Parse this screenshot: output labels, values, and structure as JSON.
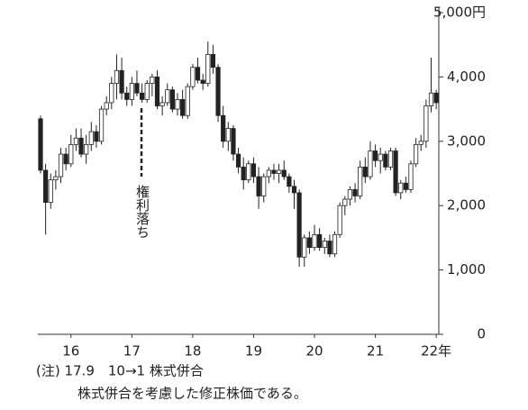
{
  "chart_data": {
    "type": "candlestick",
    "categories": [
      null,
      null,
      null,
      null,
      null,
      null,
      null,
      null,
      null,
      null,
      null,
      null,
      null,
      null,
      null,
      null,
      null,
      null,
      null,
      null,
      null,
      null,
      null,
      null,
      null,
      null,
      null,
      null,
      null,
      null,
      null,
      null,
      null,
      null,
      null,
      null,
      null,
      null,
      null,
      null,
      null,
      null,
      null,
      null,
      null,
      null,
      null,
      null,
      null,
      null,
      null,
      null,
      null,
      null,
      null,
      null,
      null,
      null,
      null,
      null,
      null,
      null,
      null,
      null,
      null,
      null,
      null,
      null,
      null,
      null,
      null,
      null,
      null,
      null,
      null,
      null,
      null,
      null,
      null
    ],
    "open": [
      3350,
      2550,
      2050,
      2400,
      2450,
      2800,
      2650,
      2950,
      3050,
      2800,
      2950,
      3150,
      3000,
      3500,
      3600,
      3900,
      4100,
      3750,
      3650,
      3900,
      3750,
      3650,
      3900,
      4000,
      3550,
      3600,
      3800,
      3500,
      3650,
      3400,
      3850,
      4150,
      3950,
      3900,
      4350,
      4150,
      3400,
      3000,
      3200,
      2800,
      2600,
      2400,
      2650,
      2450,
      2150,
      2450,
      2550,
      2500,
      2550,
      2450,
      2300,
      2200,
      1200,
      1500,
      1350,
      1550,
      1350,
      1450,
      1250,
      1550,
      2000,
      2100,
      2250,
      2150,
      2600,
      2450,
      2850,
      2700,
      2800,
      2600,
      2850,
      2200,
      2350,
      2250,
      2650,
      2950,
      3000,
      3550,
      3750
    ],
    "high": [
      3400,
      2650,
      2500,
      2550,
      2900,
      2900,
      3100,
      3200,
      3200,
      3100,
      3300,
      3250,
      3550,
      3700,
      4000,
      4350,
      4300,
      3850,
      4000,
      4100,
      3900,
      3950,
      4050,
      4100,
      3700,
      3900,
      3850,
      3750,
      3800,
      3900,
      4200,
      4300,
      4050,
      4550,
      4500,
      4200,
      3550,
      3300,
      3250,
      2900,
      2750,
      2700,
      2750,
      2600,
      2500,
      2600,
      2650,
      2650,
      2700,
      2500,
      2400,
      2250,
      1550,
      1600,
      1700,
      1650,
      1500,
      1550,
      1600,
      2050,
      2150,
      2300,
      2350,
      2700,
      2750,
      3000,
      2950,
      2900,
      2850,
      2900,
      2900,
      2400,
      2450,
      2700,
      3050,
      3100,
      3650,
      4300,
      3800
    ],
    "low": [
      2500,
      1550,
      1950,
      2250,
      2350,
      2550,
      2600,
      2850,
      2750,
      2650,
      2850,
      2900,
      2950,
      3400,
      3500,
      3650,
      3650,
      3550,
      3550,
      3700,
      3600,
      3600,
      3700,
      3500,
      3400,
      3550,
      3450,
      3400,
      3350,
      3350,
      3800,
      3900,
      3800,
      3850,
      4050,
      3300,
      2900,
      2850,
      2700,
      2500,
      2250,
      2350,
      2350,
      1950,
      2050,
      2350,
      2400,
      2350,
      2400,
      2200,
      1950,
      1050,
      1050,
      1250,
      1300,
      1300,
      1250,
      1200,
      1200,
      1500,
      1850,
      2000,
      2050,
      2100,
      2350,
      2400,
      2600,
      2500,
      2550,
      2550,
      2150,
      2100,
      2200,
      2200,
      2600,
      2850,
      2900,
      3450,
      3500
    ],
    "close": [
      2550,
      2050,
      2400,
      2450,
      2800,
      2650,
      2950,
      3050,
      2800,
      2950,
      3150,
      3000,
      3500,
      3600,
      3900,
      4100,
      3750,
      3650,
      3900,
      3750,
      3650,
      3900,
      4000,
      3550,
      3600,
      3800,
      3500,
      3650,
      3400,
      3850,
      4150,
      3950,
      3900,
      4350,
      4150,
      3400,
      3000,
      3200,
      2800,
      2600,
      2400,
      2650,
      2450,
      2150,
      2450,
      2550,
      2500,
      2550,
      2450,
      2300,
      2200,
      1200,
      1500,
      1350,
      1550,
      1350,
      1450,
      1250,
      1550,
      2000,
      2100,
      2250,
      2150,
      2600,
      2450,
      2850,
      2700,
      2800,
      2600,
      2850,
      2200,
      2350,
      2250,
      2650,
      2950,
      3000,
      3550,
      3750,
      3600
    ],
    "up_color": "#ffffff",
    "down_color": "#222222",
    "ylim": [
      0,
      5000
    ],
    "yticks": [
      0,
      {
        "value": 1000,
        "label": "1,000"
      },
      {
        "value": 2000,
        "label": "2,000"
      },
      {
        "value": 3000,
        "label": "3,000"
      },
      {
        "value": 4000,
        "label": "4,000"
      },
      {
        "value": 5000,
        "label": "5,000円"
      }
    ],
    "xticks": [
      {
        "value": 6,
        "label": "16"
      },
      {
        "value": 18,
        "label": "17"
      },
      {
        "value": 30,
        "label": "18"
      },
      {
        "value": 42,
        "label": "19"
      },
      {
        "value": 54,
        "label": "20"
      },
      {
        "value": 66,
        "label": "21"
      },
      {
        "value": 78,
        "label": "22年"
      }
    ],
    "annotation": "権利落ち",
    "notes": [
      "(注) 17.9　10→1 株式併合",
      "株式併合を考慮した修正株価である。"
    ]
  }
}
